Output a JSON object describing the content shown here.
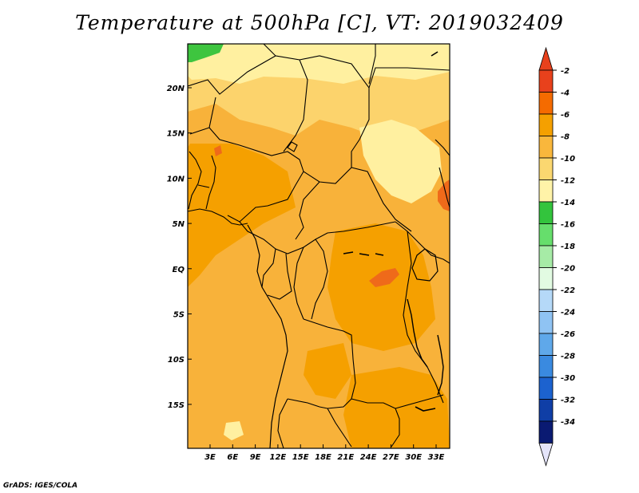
{
  "title": "Temperature at 500hPa [C], VT: 2019032409",
  "credit": "GrADS: IGES/COLA",
  "map": {
    "lat_labels": [
      "20N",
      "15N",
      "10N",
      "5N",
      "EQ",
      "5S",
      "10S",
      "15S"
    ],
    "lon_labels": [
      "3E",
      "6E",
      "9E",
      "12E",
      "15E",
      "18E",
      "21E",
      "24E",
      "27E",
      "30E",
      "33E"
    ]
  },
  "colorbar": {
    "labels": [
      "-2",
      "-4",
      "-6",
      "-8",
      "-10",
      "-12",
      "-14",
      "-16",
      "-18",
      "-20",
      "-22",
      "-24",
      "-26",
      "-28",
      "-30",
      "-32",
      "-34"
    ],
    "colors": [
      "#e8411c",
      "#f56b00",
      "#f5a000",
      "#f9b73c",
      "#fbd770",
      "#fff3a8",
      "#33c43d",
      "#66de6c",
      "#a6eba6",
      "#e2fbe2",
      "#b5d9f8",
      "#8fc3f3",
      "#5fa8ea",
      "#3a8ae0",
      "#1c62cf",
      "#0f3ea6",
      "#0a1a72"
    ],
    "top_arrow_color": "#e8411c",
    "bottom_arrow_color": "#e4e4fa"
  },
  "field_colors": {
    "base": "#f8b23a",
    "light": "#fcd36c",
    "pale": "#fff0a0",
    "dark": "#f5a000",
    "red": "#ef6a1a",
    "green": "#3ec53f"
  }
}
